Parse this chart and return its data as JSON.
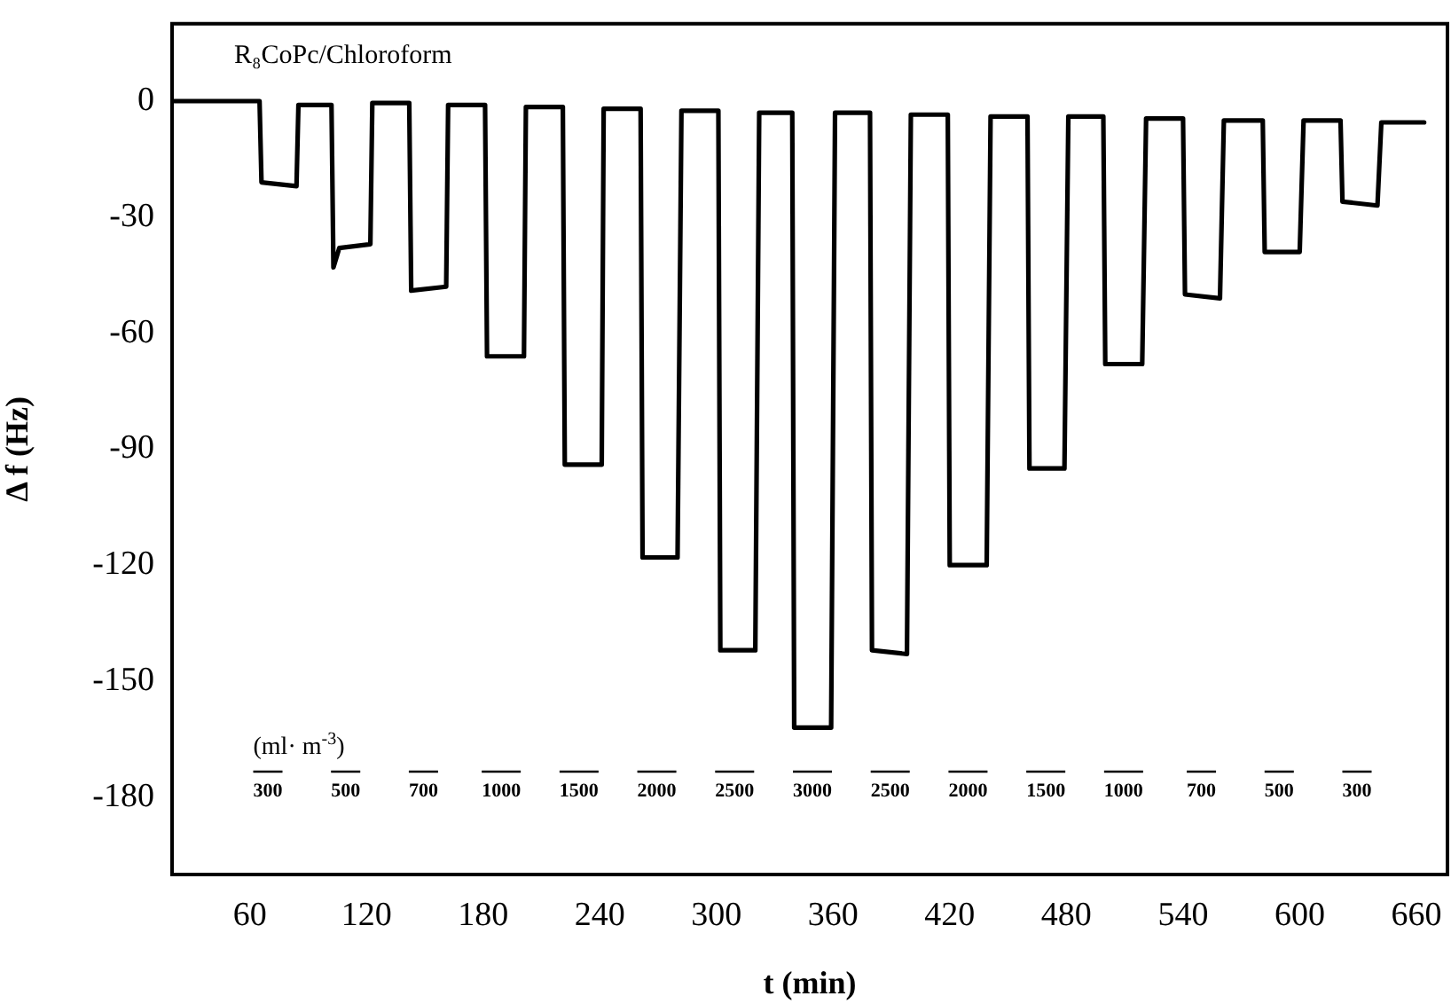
{
  "chart_data": {
    "type": "line",
    "title": "R₈CoPc/Chloroform",
    "xlabel": "t (min)",
    "ylabel": "Δ f (Hz)",
    "xlim": [
      20,
      676
    ],
    "xticks": [
      60,
      120,
      180,
      240,
      300,
      360,
      420,
      480,
      540,
      600,
      660
    ],
    "ylim": [
      -200,
      20
    ],
    "yticks": [
      0,
      -30,
      -60,
      -90,
      -120,
      -150,
      -180
    ],
    "grid": false,
    "legend": false,
    "series": [
      {
        "color": "#000000",
        "x": [
          20,
          65,
          66,
          84,
          85,
          102,
          103,
          106,
          122,
          123,
          142,
          143,
          161,
          162,
          181,
          182,
          201,
          202,
          221,
          222,
          241,
          242,
          261,
          262,
          280,
          282,
          301,
          302,
          320,
          322,
          339,
          340,
          359,
          361,
          379,
          380,
          398,
          400,
          419,
          420,
          439,
          441,
          460,
          461,
          479,
          481,
          499,
          500,
          519,
          521,
          540,
          541,
          559,
          561,
          581,
          582,
          600,
          602,
          621,
          622,
          640,
          642,
          664
        ],
        "values": [
          0,
          0,
          -21,
          -22,
          -1,
          -1,
          -43,
          -38,
          -37,
          -0.5,
          -0.5,
          -49,
          -48,
          -1,
          -1,
          -66,
          -66,
          -1.5,
          -1.5,
          -94,
          -94,
          -2,
          -2,
          -118,
          -118,
          -2.5,
          -2.5,
          -142,
          -142,
          -3,
          -3,
          -162,
          -162,
          -3,
          -3,
          -142,
          -143,
          -3.5,
          -3.5,
          -120,
          -120,
          -4,
          -4,
          -95,
          -95,
          -4,
          -4,
          -68,
          -68,
          -4.5,
          -4.5,
          -50,
          -51,
          -5,
          -5,
          -39,
          -39,
          -5,
          -5,
          -26,
          -27,
          -5.5,
          -5.5
        ]
      }
    ],
    "annotations": [
      "(ml· m$^{-3}$)",
      "300",
      "500",
      "700",
      "1000",
      "1500",
      "2000",
      "2500",
      "3000",
      "2500",
      "2000",
      "1500",
      "1000",
      "700",
      "500",
      "300"
    ]
  }
}
